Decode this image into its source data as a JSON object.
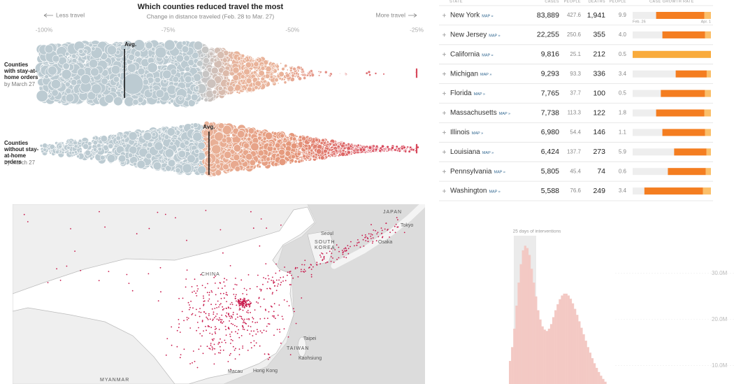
{
  "chart_data": [
    {
      "type": "beeswarm",
      "title": "Which counties reduced travel the most",
      "subtitle": "Change in distance traveled (Feb. 28 to Mar. 27)",
      "x_left_label": "Less travel",
      "x_right_label": "More travel",
      "xlim": [
        -100,
        -25
      ],
      "xticks": [
        {
          "value": -100,
          "label": "-100%"
        },
        {
          "value": -75,
          "label": "-75%"
        },
        {
          "value": -50,
          "label": "-50%"
        },
        {
          "value": -25,
          "label": "-25%"
        }
      ],
      "groups": [
        {
          "name": "Counties with stay-at-home orders",
          "note": "by March 27",
          "avg_label": "Avg.",
          "avg": -83.8
        },
        {
          "name": "Counties without stay-at-home orders",
          "note": "by March 27",
          "avg_label": "Avg.",
          "avg": -66.8
        }
      ]
    },
    {
      "type": "bar",
      "annotation": "25 days of interventions",
      "categories": [
        null,
        null,
        null,
        null,
        null,
        null,
        null,
        null,
        null,
        null,
        null,
        null,
        null,
        null,
        null,
        null,
        null,
        null,
        null,
        null,
        null,
        null,
        null,
        null,
        null,
        null,
        null,
        null,
        null,
        null,
        null,
        null,
        null,
        null,
        null,
        null,
        null,
        null,
        null,
        null,
        null,
        null,
        null,
        null,
        null,
        null,
        null,
        null,
        null,
        null
      ],
      "values": [
        11000000,
        14000000,
        18000000,
        23000000,
        28000000,
        32000000,
        35000000,
        36000000,
        35500000,
        34000000,
        31000000,
        28000000,
        25000000,
        22000000,
        20000000,
        18500000,
        17800000,
        17500000,
        18000000,
        19000000,
        20500000,
        22000000,
        23300000,
        24400000,
        25200000,
        25600000,
        25600000,
        25200000,
        24500000,
        23500000,
        22300000,
        21000000,
        19600000,
        18200000,
        16800000,
        15400000,
        14000000,
        12800000,
        11600000,
        10500000,
        9500000,
        8600000,
        7800000,
        7100000,
        6500000,
        6000000,
        5500000,
        5000000,
        4600000,
        4200000
      ],
      "color": "#f3c9c4",
      "ylim": [
        6000000,
        45000000
      ],
      "yticks": [
        {
          "value": 10000000,
          "label": "10.0M"
        },
        {
          "value": 20000000,
          "label": "20.0M"
        },
        {
          "value": 30000000,
          "label": "30.0M"
        }
      ]
    }
  ],
  "table": {
    "columns": [
      "STATE",
      "CASES",
      "PEOPLE",
      "DEATHS",
      "PEOPLE",
      "CASE GROWTH RATE"
    ],
    "map_link": "MAP »",
    "growth_start": "Feb. 26",
    "growth_end": "Apr. 1",
    "rows": [
      [
        "New York",
        "83,889",
        "427.6",
        "1,941",
        "9.9"
      ],
      [
        "New Jersey",
        "22,255",
        "250.6",
        "355",
        "4.0"
      ],
      [
        "California",
        "9,816",
        "25.1",
        "212",
        "0.5"
      ],
      [
        "Michigan",
        "9,293",
        "93.3",
        "336",
        "3.4"
      ],
      [
        "Florida",
        "7,765",
        "37.7",
        "100",
        "0.5"
      ],
      [
        "Massachusetts",
        "7,738",
        "113.3",
        "122",
        "1.8"
      ],
      [
        "Illinois",
        "6,980",
        "54.4",
        "146",
        "1.1"
      ],
      [
        "Louisiana",
        "6,424",
        "137.7",
        "273",
        "5.9"
      ],
      [
        "Pennsylvania",
        "5,805",
        "45.4",
        "74",
        "0.6"
      ],
      [
        "Washington",
        "5,588",
        "76.6",
        "249",
        "3.4"
      ]
    ]
  },
  "map": {
    "labels": [
      "JAPAN",
      "Tokyo",
      "Seoul",
      "SOUTH",
      "KOREA",
      "Osaka",
      "CHINA",
      "TAIWAN",
      "Taipei",
      "Kaohsiung",
      "Hong Kong",
      "Macau",
      "MYANMAR"
    ]
  }
}
